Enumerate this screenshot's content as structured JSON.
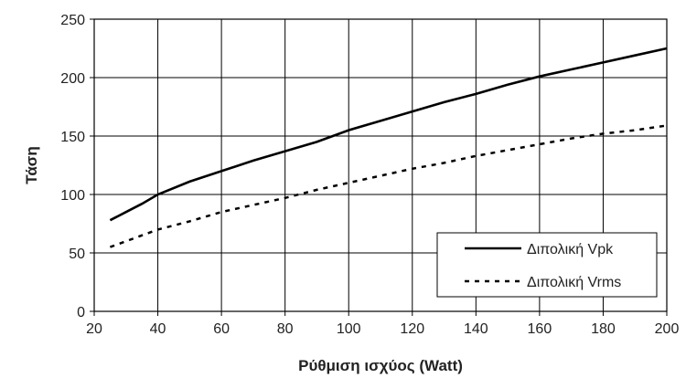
{
  "chart_data": {
    "type": "line",
    "title": "",
    "xlabel": "Ρύθμιση ισχύος (Watt)",
    "ylabel": "Τάση",
    "xlim": [
      20,
      200
    ],
    "ylim": [
      0,
      250
    ],
    "xticks": [
      20,
      40,
      60,
      80,
      100,
      120,
      140,
      160,
      180,
      200
    ],
    "yticks": [
      0,
      50,
      100,
      150,
      200,
      250
    ],
    "grid": true,
    "legend_position": "bottom-right",
    "series": [
      {
        "name": "Διπολική Vpk",
        "style": "solid",
        "color": "#000000",
        "x": [
          25,
          30,
          35,
          40,
          50,
          60,
          70,
          80,
          90,
          100,
          110,
          120,
          130,
          140,
          150,
          160,
          170,
          180,
          190,
          200
        ],
        "y": [
          78,
          85,
          92,
          100,
          111,
          120,
          129,
          137,
          145,
          155,
          163,
          171,
          179,
          186,
          194,
          201,
          207,
          213,
          219,
          225
        ]
      },
      {
        "name": "Διπολική Vrms",
        "style": "dashed",
        "color": "#000000",
        "x": [
          25,
          30,
          40,
          50,
          60,
          70,
          80,
          90,
          100,
          110,
          120,
          130,
          140,
          150,
          160,
          170,
          180,
          190,
          200
        ],
        "y": [
          55,
          60,
          70,
          77,
          85,
          91,
          97,
          104,
          110,
          116,
          122,
          127,
          133,
          138,
          143,
          148,
          152,
          155,
          159
        ]
      }
    ]
  }
}
